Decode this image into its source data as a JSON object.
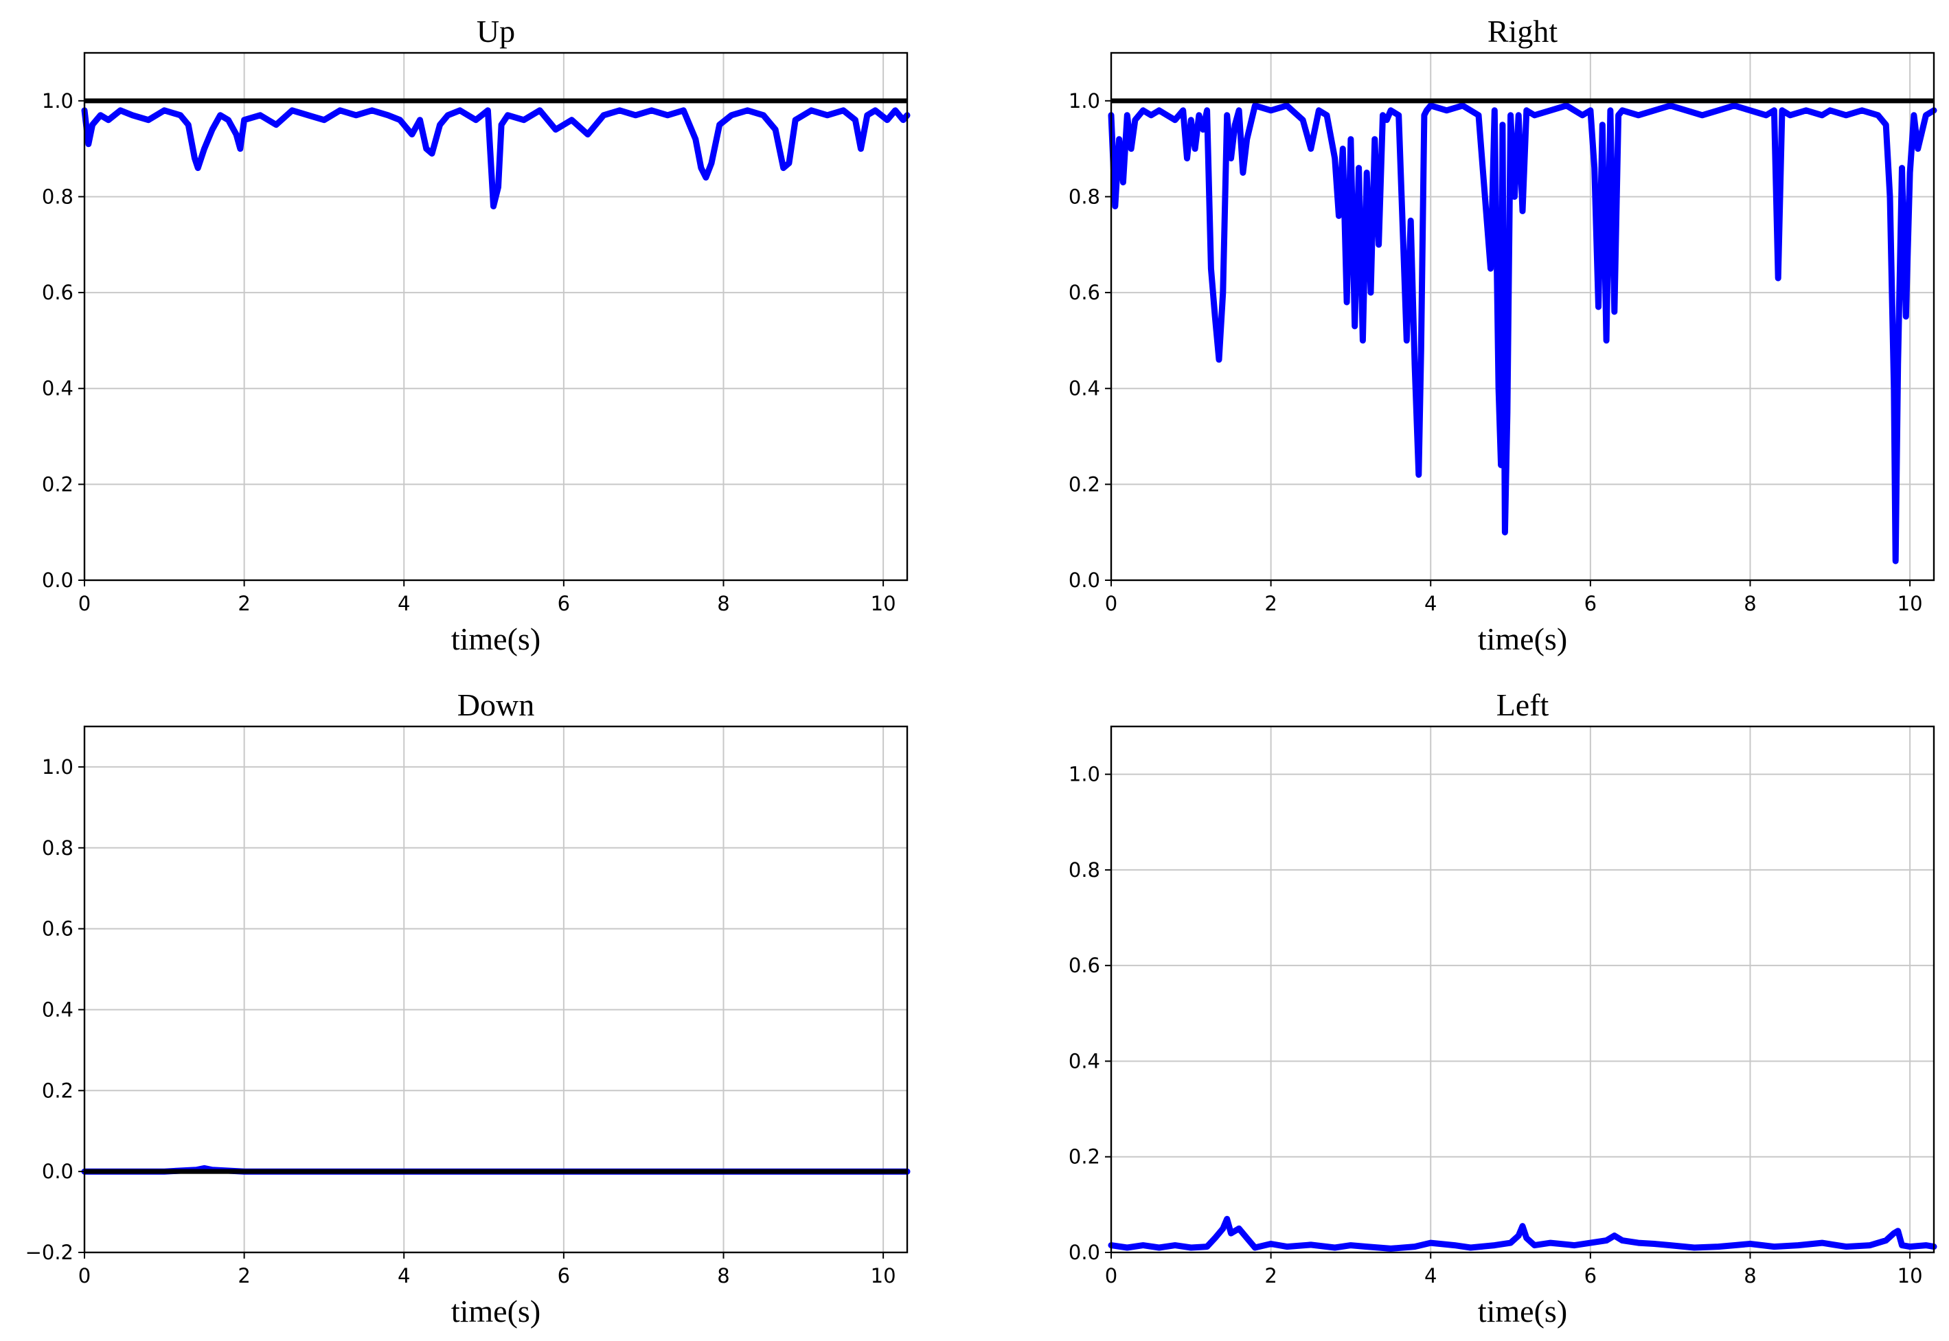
{
  "chart_data": [
    {
      "type": "line",
      "title": "Up",
      "xlabel": "time(s)",
      "ylabel": "",
      "xlim": [
        0,
        10.3
      ],
      "ylim": [
        0.0,
        1.1
      ],
      "xticks": [
        0,
        2,
        4,
        6,
        8,
        10
      ],
      "xtick_labels": [
        "0",
        "2",
        "4",
        "6",
        "8",
        "10"
      ],
      "yticks": [
        0.0,
        0.2,
        0.4,
        0.6,
        0.8,
        1.0
      ],
      "ytick_labels": [
        "0.0",
        "0.2",
        "0.4",
        "0.6",
        "0.8",
        "1.0"
      ],
      "grid": true,
      "reference_line": {
        "y": 1.0,
        "color": "#000000"
      },
      "series": [
        {
          "color": "#0000ff",
          "x": [
            0,
            0.05,
            0.1,
            0.2,
            0.3,
            0.45,
            0.6,
            0.8,
            1.0,
            1.2,
            1.3,
            1.38,
            1.42,
            1.5,
            1.6,
            1.7,
            1.8,
            1.9,
            1.95,
            2.0,
            2.2,
            2.4,
            2.6,
            2.8,
            3.0,
            3.2,
            3.4,
            3.6,
            3.8,
            3.95,
            4.1,
            4.2,
            4.28,
            4.35,
            4.45,
            4.55,
            4.7,
            4.9,
            5.05,
            5.12,
            5.18,
            5.22,
            5.3,
            5.5,
            5.7,
            5.9,
            6.1,
            6.3,
            6.5,
            6.7,
            6.9,
            7.1,
            7.3,
            7.5,
            7.65,
            7.72,
            7.78,
            7.85,
            7.95,
            8.1,
            8.3,
            8.5,
            8.65,
            8.75,
            8.82,
            8.9,
            9.1,
            9.3,
            9.5,
            9.65,
            9.72,
            9.8,
            9.9,
            10.05,
            10.15,
            10.25,
            10.3
          ],
          "y": [
            0.98,
            0.91,
            0.95,
            0.97,
            0.96,
            0.98,
            0.97,
            0.96,
            0.98,
            0.97,
            0.95,
            0.88,
            0.86,
            0.9,
            0.94,
            0.97,
            0.96,
            0.93,
            0.9,
            0.96,
            0.97,
            0.95,
            0.98,
            0.97,
            0.96,
            0.98,
            0.97,
            0.98,
            0.97,
            0.96,
            0.93,
            0.96,
            0.9,
            0.89,
            0.95,
            0.97,
            0.98,
            0.96,
            0.98,
            0.78,
            0.82,
            0.95,
            0.97,
            0.96,
            0.98,
            0.94,
            0.96,
            0.93,
            0.97,
            0.98,
            0.97,
            0.98,
            0.97,
            0.98,
            0.92,
            0.86,
            0.84,
            0.87,
            0.95,
            0.97,
            0.98,
            0.97,
            0.94,
            0.86,
            0.87,
            0.96,
            0.98,
            0.97,
            0.98,
            0.96,
            0.9,
            0.97,
            0.98,
            0.96,
            0.98,
            0.96,
            0.97
          ]
        }
      ]
    },
    {
      "type": "line",
      "title": "Right",
      "xlabel": "time(s)",
      "ylabel": "",
      "xlim": [
        0,
        10.3
      ],
      "ylim": [
        0.0,
        1.1
      ],
      "xticks": [
        0,
        2,
        4,
        6,
        8,
        10
      ],
      "xtick_labels": [
        "0",
        "2",
        "4",
        "6",
        "8",
        "10"
      ],
      "yticks": [
        0.0,
        0.2,
        0.4,
        0.6,
        0.8,
        1.0
      ],
      "ytick_labels": [
        "0.0",
        "0.2",
        "0.4",
        "0.6",
        "0.8",
        "1.0"
      ],
      "grid": true,
      "reference_line": {
        "y": 1.0,
        "color": "#000000"
      },
      "series": [
        {
          "color": "#0000ff",
          "x": [
            0,
            0.05,
            0.1,
            0.15,
            0.2,
            0.25,
            0.3,
            0.4,
            0.5,
            0.6,
            0.7,
            0.8,
            0.9,
            0.95,
            1.0,
            1.05,
            1.1,
            1.15,
            1.2,
            1.25,
            1.3,
            1.35,
            1.4,
            1.45,
            1.5,
            1.55,
            1.6,
            1.65,
            1.7,
            1.8,
            2.0,
            2.2,
            2.4,
            2.5,
            2.6,
            2.7,
            2.8,
            2.85,
            2.9,
            2.95,
            3.0,
            3.05,
            3.1,
            3.15,
            3.2,
            3.25,
            3.3,
            3.35,
            3.4,
            3.45,
            3.5,
            3.6,
            3.7,
            3.75,
            3.8,
            3.85,
            3.88,
            3.92,
            3.95,
            4.0,
            4.2,
            4.4,
            4.6,
            4.75,
            4.8,
            4.85,
            4.88,
            4.9,
            4.93,
            4.96,
            5.0,
            5.05,
            5.1,
            5.15,
            5.2,
            5.3,
            5.5,
            5.7,
            5.9,
            6.0,
            6.05,
            6.1,
            6.15,
            6.2,
            6.25,
            6.3,
            6.35,
            6.4,
            6.6,
            6.8,
            7.0,
            7.2,
            7.4,
            7.6,
            7.8,
            8.0,
            8.2,
            8.3,
            8.35,
            8.4,
            8.5,
            8.7,
            8.9,
            9.0,
            9.2,
            9.4,
            9.6,
            9.7,
            9.75,
            9.8,
            9.82,
            9.85,
            9.9,
            9.95,
            10.0,
            10.05,
            10.1,
            10.2,
            10.3
          ],
          "y": [
            0.97,
            0.78,
            0.92,
            0.83,
            0.97,
            0.9,
            0.96,
            0.98,
            0.97,
            0.98,
            0.97,
            0.96,
            0.98,
            0.88,
            0.96,
            0.9,
            0.97,
            0.94,
            0.98,
            0.65,
            0.55,
            0.46,
            0.6,
            0.97,
            0.88,
            0.95,
            0.98,
            0.85,
            0.92,
            0.99,
            0.98,
            0.99,
            0.96,
            0.9,
            0.98,
            0.97,
            0.88,
            0.76,
            0.9,
            0.58,
            0.92,
            0.53,
            0.86,
            0.5,
            0.85,
            0.6,
            0.92,
            0.7,
            0.97,
            0.96,
            0.98,
            0.97,
            0.5,
            0.75,
            0.45,
            0.22,
            0.48,
            0.97,
            0.98,
            0.99,
            0.98,
            0.99,
            0.97,
            0.65,
            0.98,
            0.4,
            0.24,
            0.95,
            0.1,
            0.35,
            0.97,
            0.8,
            0.97,
            0.77,
            0.98,
            0.97,
            0.98,
            0.99,
            0.97,
            0.98,
            0.86,
            0.57,
            0.95,
            0.5,
            0.98,
            0.56,
            0.97,
            0.98,
            0.97,
            0.98,
            0.99,
            0.98,
            0.97,
            0.98,
            0.99,
            0.98,
            0.97,
            0.98,
            0.63,
            0.98,
            0.97,
            0.98,
            0.97,
            0.98,
            0.97,
            0.98,
            0.97,
            0.95,
            0.8,
            0.4,
            0.04,
            0.45,
            0.86,
            0.55,
            0.85,
            0.97,
            0.9,
            0.97,
            0.98
          ]
        }
      ]
    },
    {
      "type": "line",
      "title": "Down",
      "xlabel": "time(s)",
      "ylabel": "",
      "xlim": [
        0,
        10.3
      ],
      "ylim": [
        -0.2,
        1.1
      ],
      "xticks": [
        0,
        2,
        4,
        6,
        8,
        10
      ],
      "xtick_labels": [
        "0",
        "2",
        "4",
        "6",
        "8",
        "10"
      ],
      "yticks": [
        -0.2,
        0.0,
        0.2,
        0.4,
        0.6,
        0.8,
        1.0
      ],
      "ytick_labels": [
        "−0.2",
        "0.0",
        "0.2",
        "0.4",
        "0.6",
        "0.8",
        "1.0"
      ],
      "grid": true,
      "reference_line": {
        "y": 0.0,
        "color": "#000000"
      },
      "series": [
        {
          "color": "#0000ff",
          "x": [
            0,
            1.0,
            1.4,
            1.5,
            1.6,
            2.0,
            4.0,
            6.0,
            8.0,
            10.3
          ],
          "y": [
            0.0,
            0.0,
            0.004,
            0.008,
            0.004,
            0.0,
            0.0,
            0.0,
            0.0,
            0.0
          ]
        }
      ]
    },
    {
      "type": "line",
      "title": "Left",
      "xlabel": "time(s)",
      "ylabel": "",
      "xlim": [
        0,
        10.3
      ],
      "ylim": [
        0.0,
        1.1
      ],
      "xticks": [
        0,
        2,
        4,
        6,
        8,
        10
      ],
      "xtick_labels": [
        "0",
        "2",
        "4",
        "6",
        "8",
        "10"
      ],
      "yticks": [
        0.0,
        0.2,
        0.4,
        0.6,
        0.8,
        1.0
      ],
      "ytick_labels": [
        "0.0",
        "0.2",
        "0.4",
        "0.6",
        "0.8",
        "1.0"
      ],
      "grid": true,
      "reference_line": null,
      "series": [
        {
          "color": "#0000ff",
          "x": [
            0,
            0.2,
            0.4,
            0.6,
            0.8,
            1.0,
            1.2,
            1.3,
            1.4,
            1.45,
            1.5,
            1.6,
            1.7,
            1.8,
            2.0,
            2.2,
            2.5,
            2.8,
            3.0,
            3.2,
            3.5,
            3.8,
            4.0,
            4.3,
            4.5,
            4.8,
            5.0,
            5.1,
            5.15,
            5.2,
            5.3,
            5.5,
            5.8,
            6.0,
            6.2,
            6.3,
            6.4,
            6.6,
            6.8,
            7.0,
            7.3,
            7.6,
            7.8,
            8.0,
            8.3,
            8.6,
            8.9,
            9.2,
            9.5,
            9.7,
            9.8,
            9.85,
            9.9,
            10.0,
            10.2,
            10.3
          ],
          "y": [
            0.015,
            0.01,
            0.015,
            0.01,
            0.015,
            0.01,
            0.012,
            0.03,
            0.05,
            0.07,
            0.04,
            0.05,
            0.03,
            0.01,
            0.018,
            0.012,
            0.016,
            0.01,
            0.015,
            0.012,
            0.008,
            0.012,
            0.02,
            0.015,
            0.01,
            0.015,
            0.02,
            0.035,
            0.055,
            0.03,
            0.015,
            0.02,
            0.015,
            0.02,
            0.025,
            0.035,
            0.025,
            0.02,
            0.018,
            0.015,
            0.01,
            0.012,
            0.015,
            0.018,
            0.012,
            0.015,
            0.02,
            0.012,
            0.015,
            0.025,
            0.04,
            0.045,
            0.015,
            0.012,
            0.015,
            0.012
          ]
        }
      ]
    }
  ]
}
